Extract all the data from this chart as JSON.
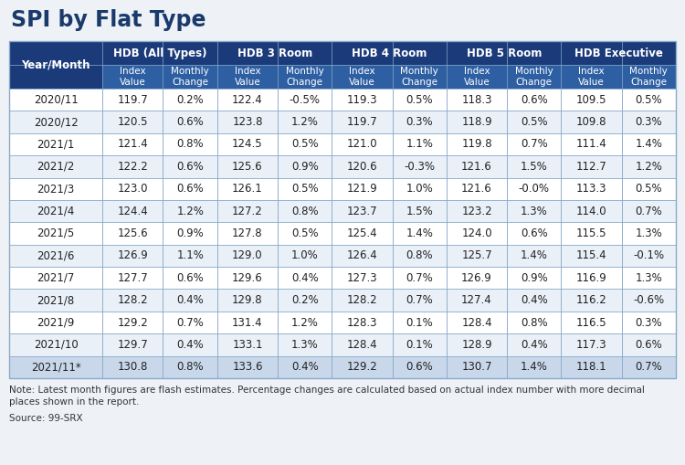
{
  "title": "SPI by Flat Type",
  "title_color": "#1a3a6b",
  "background_color": "#eef2f7",
  "header1_bg": "#1a3a7a",
  "header1_color": "#ffffff",
  "header2_bg": "#2e5fa3",
  "header2_color": "#ffffff",
  "row_colors": [
    "#ffffff",
    "#eaf0f7"
  ],
  "last_row_bg": "#c8d8ea",
  "border_color": "#8aaac8",
  "col0_header": "Year/Month",
  "group_headers": [
    "HDB (All Types)",
    "HDB 3 Room",
    "HDB 4 Room",
    "HDB 5 Room",
    "HDB Executive"
  ],
  "sub_headers": [
    "Index\nValue",
    "Monthly\nChange"
  ],
  "years": [
    "2020/11",
    "2020/12",
    "2021/1",
    "2021/2",
    "2021/3",
    "2021/4",
    "2021/5",
    "2021/6",
    "2021/7",
    "2021/8",
    "2021/9",
    "2021/10",
    "2021/11*"
  ],
  "data": [
    [
      "119.7",
      "0.2%",
      "122.4",
      "-0.5%",
      "119.3",
      "0.5%",
      "118.3",
      "0.6%",
      "109.5",
      "0.5%"
    ],
    [
      "120.5",
      "0.6%",
      "123.8",
      "1.2%",
      "119.7",
      "0.3%",
      "118.9",
      "0.5%",
      "109.8",
      "0.3%"
    ],
    [
      "121.4",
      "0.8%",
      "124.5",
      "0.5%",
      "121.0",
      "1.1%",
      "119.8",
      "0.7%",
      "111.4",
      "1.4%"
    ],
    [
      "122.2",
      "0.6%",
      "125.6",
      "0.9%",
      "120.6",
      "-0.3%",
      "121.6",
      "1.5%",
      "112.7",
      "1.2%"
    ],
    [
      "123.0",
      "0.6%",
      "126.1",
      "0.5%",
      "121.9",
      "1.0%",
      "121.6",
      "-0.0%",
      "113.3",
      "0.5%"
    ],
    [
      "124.4",
      "1.2%",
      "127.2",
      "0.8%",
      "123.7",
      "1.5%",
      "123.2",
      "1.3%",
      "114.0",
      "0.7%"
    ],
    [
      "125.6",
      "0.9%",
      "127.8",
      "0.5%",
      "125.4",
      "1.4%",
      "124.0",
      "0.6%",
      "115.5",
      "1.3%"
    ],
    [
      "126.9",
      "1.1%",
      "129.0",
      "1.0%",
      "126.4",
      "0.8%",
      "125.7",
      "1.4%",
      "115.4",
      "-0.1%"
    ],
    [
      "127.7",
      "0.6%",
      "129.6",
      "0.4%",
      "127.3",
      "0.7%",
      "126.9",
      "0.9%",
      "116.9",
      "1.3%"
    ],
    [
      "128.2",
      "0.4%",
      "129.8",
      "0.2%",
      "128.2",
      "0.7%",
      "127.4",
      "0.4%",
      "116.2",
      "-0.6%"
    ],
    [
      "129.2",
      "0.7%",
      "131.4",
      "1.2%",
      "128.3",
      "0.1%",
      "128.4",
      "0.8%",
      "116.5",
      "0.3%"
    ],
    [
      "129.7",
      "0.4%",
      "133.1",
      "1.3%",
      "128.4",
      "0.1%",
      "128.9",
      "0.4%",
      "117.3",
      "0.6%"
    ],
    [
      "130.8",
      "0.8%",
      "133.6",
      "0.4%",
      "129.2",
      "0.6%",
      "130.7",
      "1.4%",
      "118.1",
      "0.7%"
    ]
  ],
  "note_line1": "Note: Latest month figures are flash estimates. Percentage changes are calculated based on actual index number with more decimal",
  "note_line2": "places shown in the report.",
  "source": "Source: 99-SRX",
  "note_fontsize": 7.5,
  "data_fontsize": 8.5,
  "header_fontsize": 8.5,
  "subheader_fontsize": 7.5,
  "title_fontsize": 17
}
